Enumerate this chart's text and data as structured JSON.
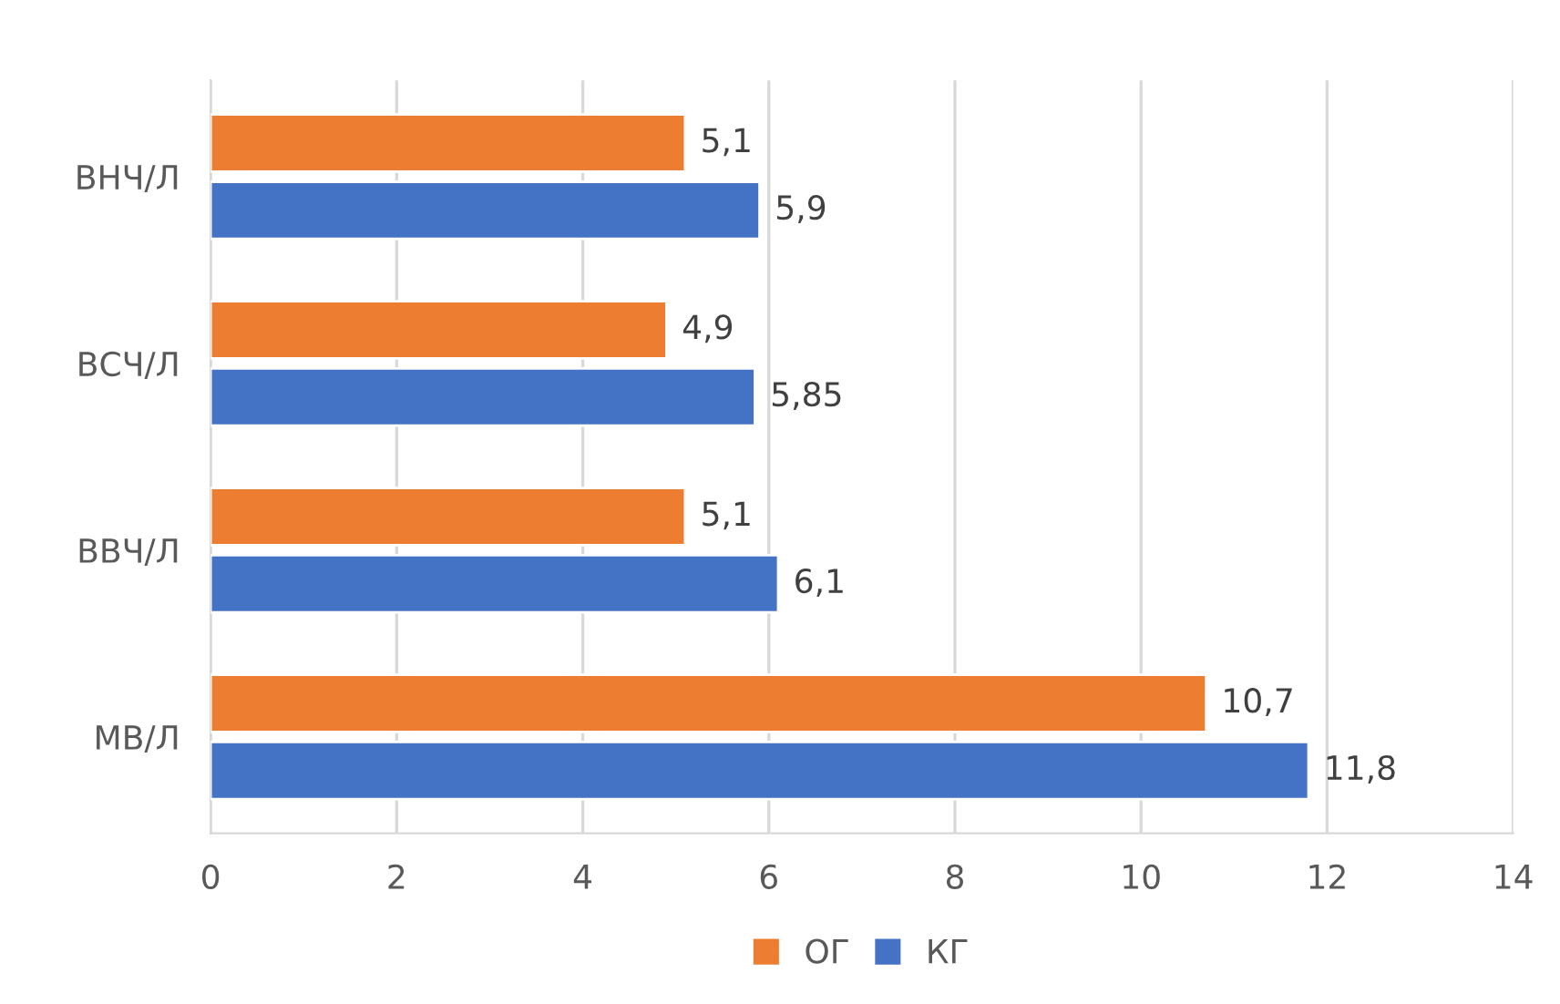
{
  "chart_data": {
    "type": "bar",
    "orientation": "horizontal",
    "categories": [
      "ВНЧ/Л",
      "ВСЧ/Л",
      "ВВЧ/Л",
      "МВ/Л"
    ],
    "series": [
      {
        "name": "ОГ",
        "color": "#ed7d31",
        "values": [
          5.1,
          4.9,
          5.1,
          10.7
        ],
        "value_labels": [
          "5,1",
          "4,9",
          "5,1",
          "10,7"
        ]
      },
      {
        "name": "КГ",
        "color": "#4472c4",
        "values": [
          5.9,
          5.85,
          6.1,
          11.8
        ],
        "value_labels": [
          "5,9",
          "5,85",
          "6,1",
          "11,8"
        ]
      }
    ],
    "xlim": [
      0,
      14
    ],
    "xticks": [
      0,
      2,
      4,
      6,
      8,
      10,
      12,
      14
    ],
    "grid": "x",
    "legend": "bottom"
  }
}
